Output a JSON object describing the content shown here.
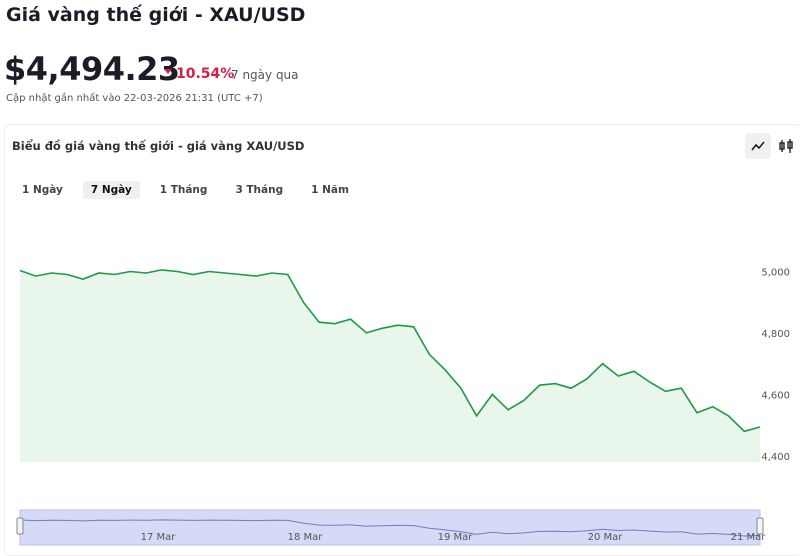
{
  "header": {
    "title": "Giá vàng thế giới - XAU/USD",
    "price": "$4,494.23",
    "change": "10.54%",
    "period": "7 ngày qua",
    "updated": "Cập nhật gần nhất vào 22-03-2026 21:31 (UTC +7)"
  },
  "panel": {
    "title": "Biểu đồ giá vàng thế giới - giá vàng XAU/USD",
    "tabs": [
      "1 Ngày",
      "7 Ngày",
      "1 Tháng",
      "3 Tháng",
      "1 Năm"
    ],
    "active_tab": 1,
    "navigator_labels": [
      "17 Mar",
      "18 Mar",
      "19 Mar",
      "20 Mar",
      "21 Mar"
    ]
  },
  "chart_data": {
    "type": "line",
    "color": "#1f9a44",
    "values": [
      5003,
      4985,
      4995,
      4990,
      4975,
      4995,
      4990,
      5000,
      4995,
      5005,
      5000,
      4990,
      5000,
      4995,
      4990,
      4985,
      4995,
      4990,
      4900,
      4835,
      4830,
      4845,
      4800,
      4815,
      4825,
      4820,
      4730,
      4680,
      4620,
      4530,
      4600,
      4550,
      4580,
      4630,
      4635,
      4620,
      4650,
      4700,
      4660,
      4675,
      4640,
      4610,
      4620,
      4540,
      4560,
      4530,
      4480,
      4494
    ],
    "ylim": [
      4380,
      5200
    ],
    "yticks": [
      {
        "value": 4400,
        "label": "4,400"
      },
      {
        "value": 4600,
        "label": "4,600"
      },
      {
        "value": 4800,
        "label": "4,800"
      },
      {
        "value": 5000,
        "label": "5,000"
      }
    ],
    "grid": false
  }
}
